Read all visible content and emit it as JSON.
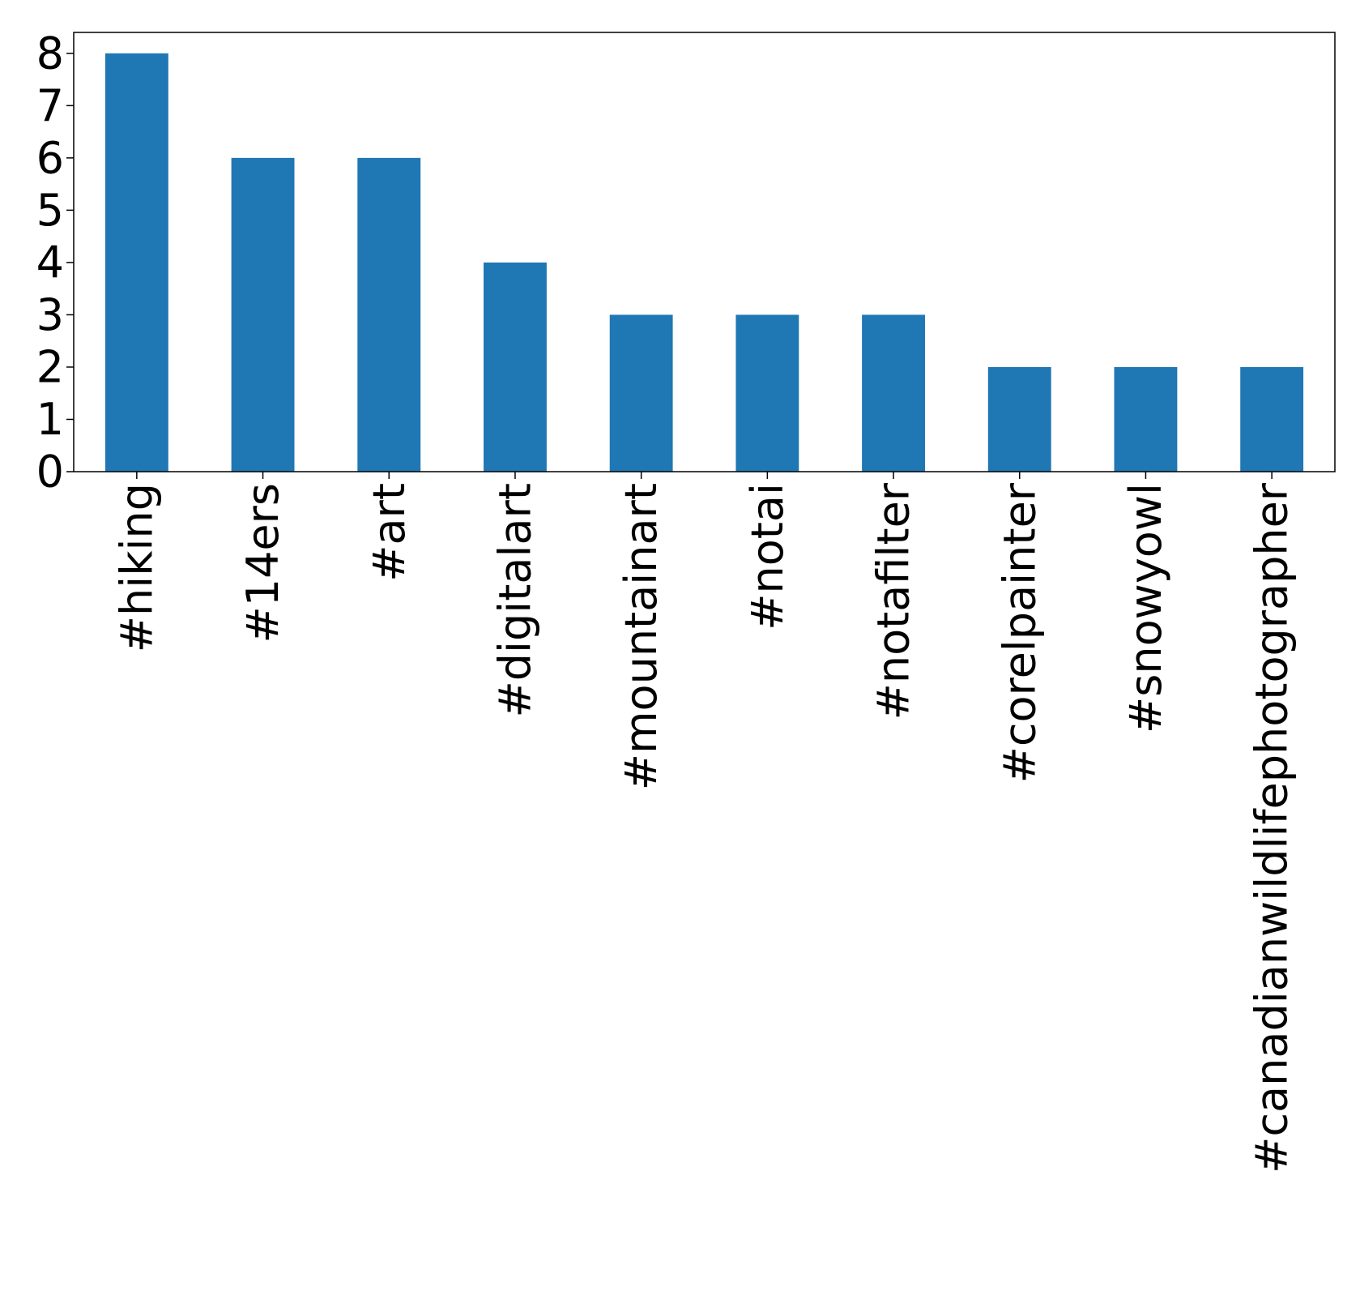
{
  "chart_data": {
    "type": "bar",
    "categories": [
      "#hiking",
      "#14ers",
      "#art",
      "#digitalart",
      "#mountainart",
      "#notai",
      "#notafilter",
      "#corelpainter",
      "#snowyowl",
      "#canadianwildlifephotographer"
    ],
    "values": [
      8,
      6,
      6,
      4,
      3,
      3,
      3,
      2,
      2,
      2
    ],
    "title": "",
    "xlabel": "",
    "ylabel": "",
    "ylim": [
      0,
      8.4
    ],
    "yticks": [
      0,
      1,
      2,
      3,
      4,
      5,
      6,
      7,
      8
    ],
    "grid": false,
    "legend": "none",
    "bar_color": "#1f77b4"
  }
}
